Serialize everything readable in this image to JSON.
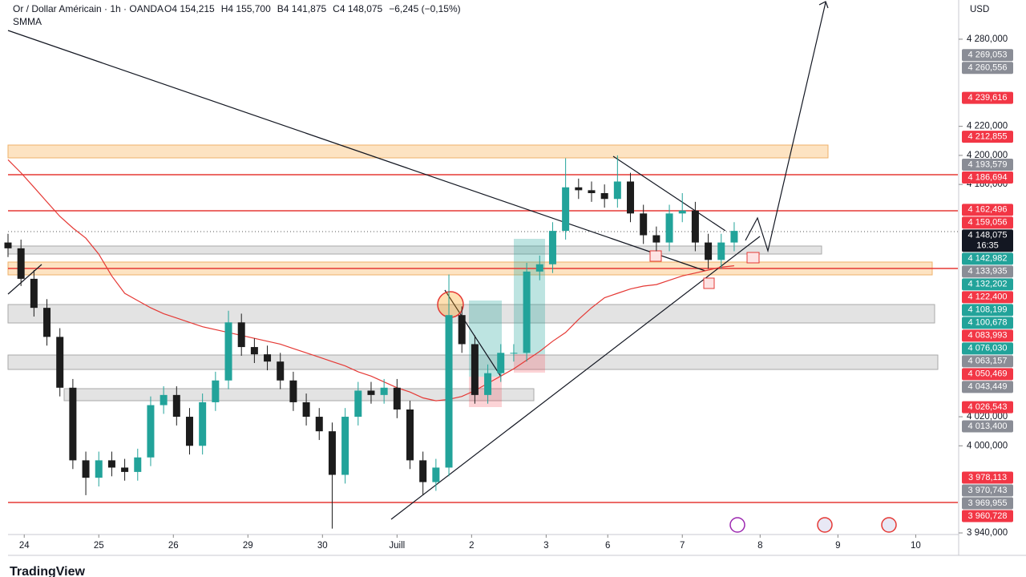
{
  "header": {
    "title": "Or / Dollar Américain · 1h · OANDA",
    "ohlc": [
      "O4 154,215",
      "H4 155,700",
      "B4 141,875",
      "C4 148,075",
      "−6,245 (−0,15%)"
    ]
  },
  "brand": "TradingView",
  "chart_data": {
    "type": "candlestick",
    "currency": "USD",
    "countdown": "16:35",
    "up_color": "#22a39a",
    "down_color": "#1c1c1c",
    "x": [
      0,
      4,
      8,
      12,
      16,
      20,
      24,
      28,
      32,
      36,
      40,
      44,
      48,
      52,
      56,
      60,
      64,
      68,
      72,
      76,
      80,
      84,
      88,
      92,
      96,
      100,
      104,
      108,
      112,
      116,
      120,
      124,
      128,
      132,
      136,
      140,
      144,
      148,
      152,
      156,
      160,
      164,
      168,
      172,
      176,
      180,
      184,
      188,
      192,
      196,
      200,
      204,
      208,
      212,
      216,
      220,
      224
    ],
    "open": [
      4140,
      4136,
      4115,
      4095,
      4075,
      4040,
      3990,
      3978,
      3990,
      3985,
      3982,
      3992,
      4028,
      4035,
      4020,
      4000,
      4030,
      4045,
      4085,
      4068,
      4063,
      4058,
      4045,
      4030,
      4020,
      4010,
      3980,
      4020,
      4038,
      4035,
      4040,
      4025,
      3990,
      3975,
      3985,
      4090,
      4070,
      4035,
      4050,
      4064,
      4064,
      4120,
      4125,
      4148,
      4178,
      4176,
      4174,
      4170,
      4182,
      4160,
      4145,
      4140,
      4160,
      4162,
      4140,
      4128,
      4140
    ],
    "high": [
      4146,
      4142,
      4121,
      4101,
      4081,
      4046,
      3996,
      3996,
      3996,
      3991,
      3998,
      4034,
      4041,
      4041,
      4026,
      4036,
      4051,
      4093,
      4091,
      4074,
      4069,
      4064,
      4051,
      4036,
      4026,
      4016,
      4026,
      4044,
      4044,
      4046,
      4046,
      4031,
      3996,
      3991,
      4118,
      4096,
      4076,
      4056,
      4070,
      4070,
      4126,
      4131,
      4154,
      4198,
      4184,
      4182,
      4180,
      4200,
      4188,
      4166,
      4151,
      4166,
      4174,
      4168,
      4146,
      4146,
      4154
    ],
    "low": [
      4130,
      4110,
      4089,
      4069,
      4034,
      3984,
      3966,
      3972,
      3979,
      3976,
      3976,
      3986,
      4022,
      4014,
      3994,
      3994,
      4024,
      4039,
      4062,
      4057,
      4052,
      4039,
      4024,
      4014,
      4004,
      3943,
      3974,
      4014,
      4029,
      4029,
      4019,
      3984,
      3966,
      3969,
      3979,
      4064,
      4029,
      4029,
      4044,
      4058,
      4058,
      4114,
      4119,
      4142,
      4170,
      4168,
      4164,
      4164,
      4154,
      4139,
      4134,
      4134,
      4154,
      4134,
      4122,
      4122,
      4134
    ],
    "close": [
      4136,
      4115,
      4095,
      4075,
      4040,
      3990,
      3978,
      3990,
      3985,
      3982,
      3992,
      4028,
      4035,
      4020,
      4000,
      4030,
      4045,
      4085,
      4068,
      4063,
      4058,
      4045,
      4030,
      4020,
      4010,
      3980,
      4020,
      4038,
      4035,
      4040,
      4025,
      3990,
      3975,
      3985,
      4090,
      4070,
      4035,
      4050,
      4064,
      4064,
      4120,
      4125,
      4148,
      4178,
      4176,
      4174,
      4170,
      4182,
      4160,
      4145,
      4140,
      4160,
      4162,
      4140,
      4128,
      4140,
      4148
    ],
    "indicator": {
      "name": "SMMA",
      "color": "#e53935",
      "values": [
        4197,
        4188,
        4178,
        4168,
        4158,
        4150,
        4143,
        4132,
        4117,
        4105,
        4100,
        4095,
        4091,
        4088,
        4085,
        4082,
        4080,
        4078,
        4076,
        4074,
        4072,
        4070,
        4067,
        4064,
        4061,
        4058,
        4055,
        4051,
        4048,
        4044,
        4040,
        4037,
        4033,
        4031,
        4032,
        4034,
        4038,
        4043,
        4048,
        4053,
        4059,
        4065,
        4072,
        4078,
        4087,
        4095,
        4102,
        4105,
        4108,
        4110,
        4111,
        4114,
        4117,
        4119,
        4121,
        4123,
        4124
      ]
    },
    "xlim": [
      0,
      293
    ],
    "xticks": [
      {
        "value": 5,
        "label": "24"
      },
      {
        "value": 28,
        "label": "25"
      },
      {
        "value": 51,
        "label": "26"
      },
      {
        "value": 74,
        "label": "29"
      },
      {
        "value": 97,
        "label": "30"
      },
      {
        "value": 120,
        "label": "Juill"
      },
      {
        "value": 143,
        "label": "2"
      },
      {
        "value": 166,
        "label": "3"
      },
      {
        "value": 185,
        "label": "6"
      },
      {
        "value": 208,
        "label": "7"
      },
      {
        "value": 232,
        "label": "8"
      },
      {
        "value": 256,
        "label": "9"
      },
      {
        "value": 280,
        "label": "10"
      }
    ],
    "ylim": [
      3940,
      4307
    ],
    "yticks": [
      {
        "value": 3940,
        "label": "3 940,000"
      },
      {
        "value": 4000,
        "label": "4 000,000"
      },
      {
        "value": 4020,
        "label": "4 020,000"
      },
      {
        "value": 4180,
        "label": "4 180,000"
      },
      {
        "value": 4200,
        "label": "4 200,000"
      },
      {
        "value": 4220,
        "label": "4 220,000"
      },
      {
        "value": 4280,
        "label": "4 280,000"
      }
    ],
    "price_tags": [
      {
        "value": 4269.053,
        "label": "4 269,053",
        "color": "#8a8d96"
      },
      {
        "value": 4260.556,
        "label": "4 260,556",
        "color": "#8a8d96"
      },
      {
        "value": 4239.616,
        "label": "4 239,616",
        "color": "#f23645"
      },
      {
        "value": 4212.855,
        "label": "4 212,855",
        "color": "#f23645"
      },
      {
        "value": 4193.579,
        "label": "4 193,579",
        "color": "#8a8d96"
      },
      {
        "value": 4186.694,
        "label": "4 186,694",
        "color": "#f23645"
      },
      {
        "value": 4162.496,
        "label": "4 162,496",
        "color": "#f23645"
      },
      {
        "value": 4159.056,
        "label": "4 159,056",
        "color": "#f23645"
      },
      {
        "value": 4148.075,
        "label": "4 148,075",
        "color": "#131722"
      },
      {
        "value": 4142.982,
        "label": "4 142,982",
        "color": "#22a39a"
      },
      {
        "value": 4133.935,
        "label": "4 133,935",
        "color": "#8a8d96"
      },
      {
        "value": 4132.202,
        "label": "4 132,202",
        "color": "#22a39a"
      },
      {
        "value": 4122.4,
        "label": "4 122,400",
        "color": "#f23645"
      },
      {
        "value": 4108.199,
        "label": "4 108,199",
        "color": "#22a39a"
      },
      {
        "value": 4100.678,
        "label": "4 100,678",
        "color": "#22a39a"
      },
      {
        "value": 4083.993,
        "label": "4 083,993",
        "color": "#f23645"
      },
      {
        "value": 4076.03,
        "label": "4 076,030",
        "color": "#22a39a"
      },
      {
        "value": 4063.157,
        "label": "4 063,157",
        "color": "#8a8d96"
      },
      {
        "value": 4050.469,
        "label": "4 050,469",
        "color": "#f23645"
      },
      {
        "value": 4043.449,
        "label": "4 043,449",
        "color": "#8a8d96"
      },
      {
        "value": 4026.543,
        "label": "4 026,543",
        "color": "#f23645"
      },
      {
        "value": 4013.4,
        "label": "4 013,400",
        "color": "#8a8d96"
      },
      {
        "value": 3978.113,
        "label": "3 978,113",
        "color": "#f23645"
      },
      {
        "value": 3970.743,
        "label": "3 970,743",
        "color": "#8a8d96"
      },
      {
        "value": 3969.955,
        "label": "3 969,955",
        "color": "#8a8d96"
      },
      {
        "value": 3960.728,
        "label": "3 960,728",
        "color": "#f23645"
      }
    ]
  }
}
